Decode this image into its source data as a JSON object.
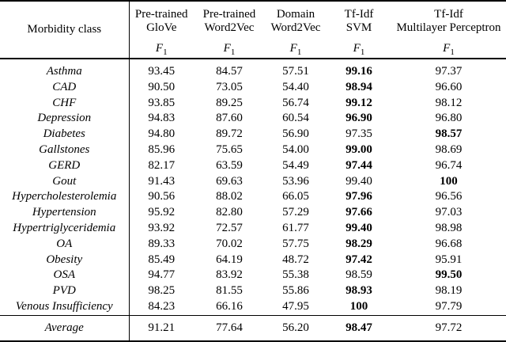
{
  "table": {
    "header": {
      "morbidity_class": "Morbidity class",
      "metric": {
        "name": "F",
        "sub": "1"
      },
      "columns": [
        {
          "line1": "Pre-trained",
          "line2": "GloVe"
        },
        {
          "line1": "Pre-trained",
          "line2": "Word2Vec"
        },
        {
          "line1": "Domain",
          "line2": "Word2Vec"
        },
        {
          "line1": "Tf-Idf",
          "line2": "SVM"
        },
        {
          "line1": "Tf-Idf",
          "line2": "Multilayer Perceptron"
        }
      ]
    },
    "rows": [
      {
        "label": "Asthma",
        "values": [
          "93.45",
          "84.57",
          "57.51",
          "99.16",
          "97.37"
        ],
        "bold_index": 3
      },
      {
        "label": "CAD",
        "values": [
          "90.50",
          "73.05",
          "54.40",
          "98.94",
          "96.60"
        ],
        "bold_index": 3
      },
      {
        "label": "CHF",
        "values": [
          "93.85",
          "89.25",
          "56.74",
          "99.12",
          "98.12"
        ],
        "bold_index": 3
      },
      {
        "label": "Depression",
        "values": [
          "94.83",
          "87.60",
          "60.54",
          "96.90",
          "96.80"
        ],
        "bold_index": 3
      },
      {
        "label": "Diabetes",
        "values": [
          "94.80",
          "89.72",
          "56.90",
          "97.35",
          "98.57"
        ],
        "bold_index": 4
      },
      {
        "label": "Gallstones",
        "values": [
          "85.96",
          "75.65",
          "54.00",
          "99.00",
          "98.69"
        ],
        "bold_index": 3
      },
      {
        "label": "GERD",
        "values": [
          "82.17",
          "63.59",
          "54.49",
          "97.44",
          "96.74"
        ],
        "bold_index": 3
      },
      {
        "label": "Gout",
        "values": [
          "91.43",
          "69.63",
          "53.96",
          "99.40",
          "100"
        ],
        "bold_index": 4
      },
      {
        "label": "Hypercholesterolemia",
        "values": [
          "90.56",
          "88.02",
          "66.05",
          "97.96",
          "96.56"
        ],
        "bold_index": 3
      },
      {
        "label": "Hypertension",
        "values": [
          "95.92",
          "82.80",
          "57.29",
          "97.66",
          "97.03"
        ],
        "bold_index": 3
      },
      {
        "label": "Hypertriglyceridemia",
        "values": [
          "93.92",
          "72.57",
          "61.77",
          "99.40",
          "98.98"
        ],
        "bold_index": 3
      },
      {
        "label": "OA",
        "values": [
          "89.33",
          "70.02",
          "57.75",
          "98.29",
          "96.68"
        ],
        "bold_index": 3
      },
      {
        "label": "Obesity",
        "values": [
          "85.49",
          "64.19",
          "48.72",
          "97.42",
          "95.91"
        ],
        "bold_index": 3
      },
      {
        "label": "OSA",
        "values": [
          "94.77",
          "83.92",
          "55.38",
          "98.59",
          "99.50"
        ],
        "bold_index": 4
      },
      {
        "label": "PVD",
        "values": [
          "98.25",
          "81.55",
          "55.86",
          "98.93",
          "98.19"
        ],
        "bold_index": 3
      },
      {
        "label": "Venous Insufficiency",
        "values": [
          "84.23",
          "66.16",
          "47.95",
          "100",
          "97.79"
        ],
        "bold_index": 3
      }
    ],
    "average": {
      "label": "Average",
      "values": [
        "91.21",
        "77.64",
        "56.20",
        "98.47",
        "97.72"
      ],
      "bold_index": 3
    }
  }
}
